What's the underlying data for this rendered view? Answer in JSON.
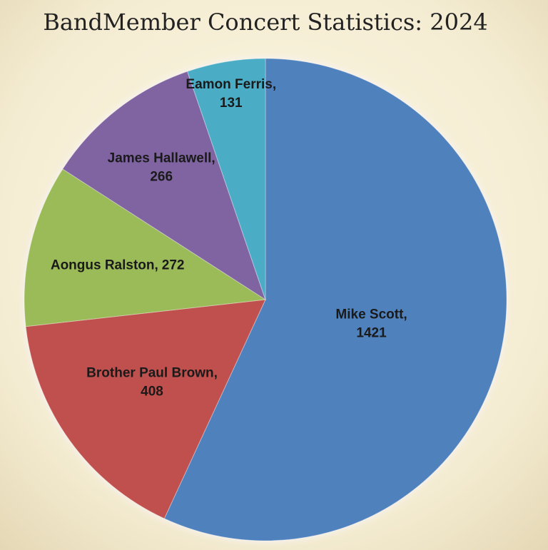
{
  "chart_data": {
    "type": "pie",
    "title": "BandMember Concert Statistics:   2024",
    "categories": [
      "Mike Scott,",
      "Brother Paul Brown,",
      "Aongus Ralston,",
      "James Hallawell,",
      "Eamon Ferris,"
    ],
    "values": [
      1421,
      408,
      272,
      266,
      131
    ],
    "colors": [
      "#4f81bd",
      "#c0504d",
      "#9bbb59",
      "#8064a2",
      "#4bacc6"
    ]
  }
}
